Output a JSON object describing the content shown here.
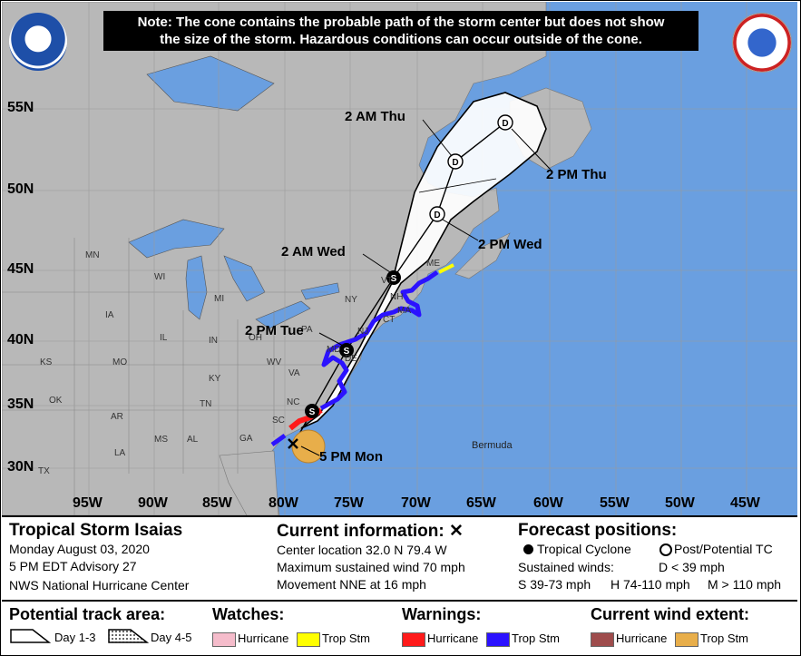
{
  "note": {
    "line1": "Note: The cone contains the probable path of the storm center but does not show",
    "line2": "the size of the storm. Hazardous conditions can occur outside of the cone."
  },
  "lat_labels": [
    "55N",
    "50N",
    "45N",
    "40N",
    "35N",
    "30N"
  ],
  "lon_labels": [
    "95W",
    "90W",
    "85W",
    "80W",
    "75W",
    "70W",
    "65W",
    "60W",
    "55W",
    "50W",
    "45W"
  ],
  "states": [
    "MN",
    "WI",
    "MI",
    "IA",
    "IL",
    "IN",
    "OH",
    "PA",
    "NY",
    "VT",
    "NH",
    "ME",
    "MA",
    "CT",
    "NJ",
    "MD",
    "DE",
    "WV",
    "VA",
    "KY",
    "MO",
    "KS",
    "OK",
    "AR",
    "TN",
    "NC",
    "SC",
    "MS",
    "AL",
    "GA",
    "LA",
    "TX"
  ],
  "places": {
    "bermuda": "Bermuda"
  },
  "forecast_points": [
    {
      "label": "5 PM Mon",
      "marker": "x"
    },
    {
      "label": "2 PM Tue",
      "marker": "S"
    },
    {
      "label": "2 AM Wed",
      "marker": "S"
    },
    {
      "label": "2 PM Wed",
      "marker": "D"
    },
    {
      "label": "2 AM Thu",
      "marker": "D"
    },
    {
      "label": "2 PM Thu",
      "marker": "D"
    }
  ],
  "track_markers": {
    "storm_day12": "S",
    "post_tc": "D"
  },
  "info": {
    "storm_name": "Tropical Storm Isaias",
    "date": "Monday August 03, 2020",
    "advisory": "5 PM EDT Advisory 27",
    "center": "NWS National Hurricane Center",
    "current_title": "Current information: ✕",
    "location": "Center location 32.0 N 79.4 W",
    "max_wind": "Maximum sustained wind 70 mph",
    "movement": "Movement NNE at 16 mph",
    "forecast_title": "Forecast positions:",
    "tropical_cyclone": "Tropical Cyclone",
    "post_tc": "Post/Potential TC",
    "sustained_winds": "Sustained winds:",
    "d_range": "D < 39 mph",
    "s_range": "S 39-73 mph",
    "h_range": "H 74-110 mph",
    "m_range": "M > 110 mph"
  },
  "legend": {
    "track_title": "Potential track area:",
    "day13": "Day 1-3",
    "day45": "Day 4-5",
    "watches_title": "Watches:",
    "watch_hurricane": "Hurricane",
    "watch_tropstm": "Trop Stm",
    "warnings_title": "Warnings:",
    "warn_hurricane": "Hurricane",
    "warn_tropstm": "Trop Stm",
    "wind_title": "Current wind extent:",
    "wind_hurricane": "Hurricane",
    "wind_tropstm": "Trop Stm"
  },
  "colors": {
    "ocean": "#6a9fe0",
    "land": "#b8b8b8",
    "cone": "#ffffff",
    "watch_hurricane": "#f5bccb",
    "watch_tropstm": "#ffff00",
    "warn_hurricane": "#ff1a1a",
    "warn_tropstm": "#2b12ff",
    "wind_hurricane": "#9e4c4c",
    "wind_tropstm": "#e8ae4a"
  },
  "icons": {
    "noaa_logo": "noaa-logo",
    "nws_logo": "nws-logo"
  }
}
